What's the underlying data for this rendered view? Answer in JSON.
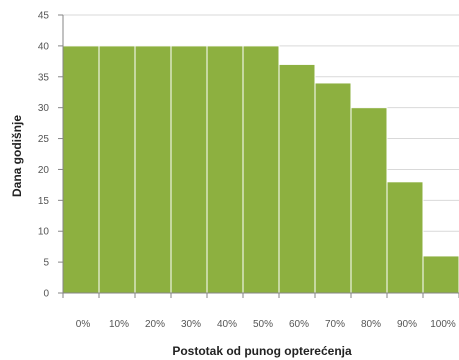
{
  "chart_data": {
    "type": "bar",
    "categories": [
      "0%",
      "10%",
      "20%",
      "30%",
      "40%",
      "50%",
      "60%",
      "70%",
      "80%",
      "90%",
      "100%"
    ],
    "values": [
      40,
      40,
      40,
      40,
      40,
      40,
      37,
      34,
      30,
      18,
      6
    ],
    "xlabel": "Postotak od punog opterećenja",
    "ylabel": "Dana godišnje",
    "ylim": [
      0,
      45
    ],
    "yticks": [
      "0",
      "5",
      "10",
      "15",
      "20",
      "25",
      "30",
      "35",
      "40",
      "45"
    ],
    "grid": true,
    "legend": "none",
    "colors": {
      "bar": "#8db040",
      "grid": "#d9d9d9",
      "axis": "#868686"
    }
  }
}
